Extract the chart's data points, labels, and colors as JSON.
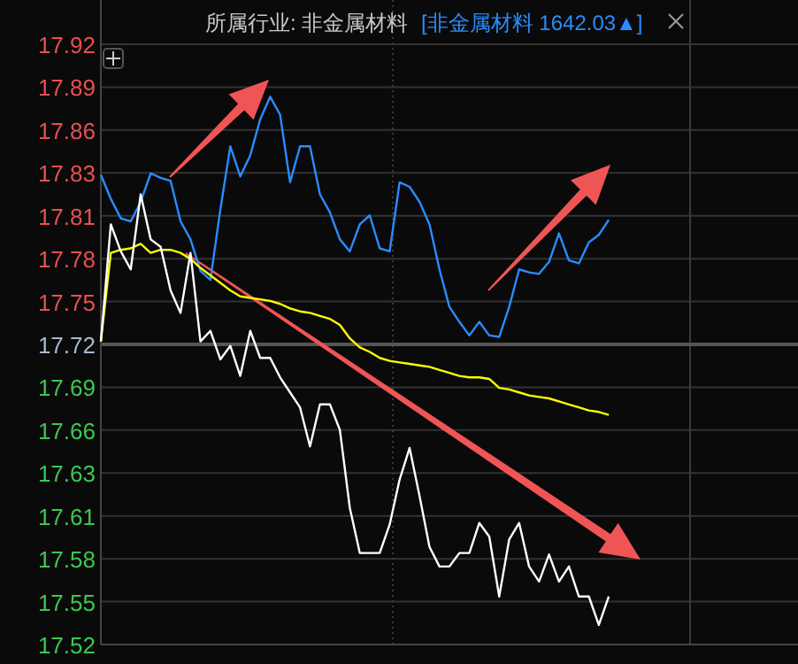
{
  "chart_data": {
    "type": "line",
    "title": "所属行业: 非金属材料",
    "subtitle": "[非金属材料 1642.03▲]",
    "categories": [
      null,
      null,
      null,
      null,
      null,
      null,
      null,
      null,
      null,
      null,
      null,
      null,
      null,
      null,
      null,
      null,
      null,
      null,
      null,
      null,
      null,
      null,
      null,
      null,
      null,
      null,
      null,
      null,
      null,
      null,
      null,
      null,
      null,
      null,
      null,
      null,
      null,
      null,
      null,
      null,
      null,
      null,
      null,
      null,
      null,
      null,
      null,
      null,
      null,
      null,
      null,
      null,
      null,
      null,
      null,
      null,
      null,
      null,
      null,
      null,
      null,
      null,
      null,
      null,
      null,
      null,
      null,
      null,
      null,
      null,
      null
    ],
    "ylim": [
      17.52,
      17.92
    ],
    "yticks": [
      {
        "value": 17.52,
        "label": "17.52"
      },
      {
        "value": 17.5486,
        "label": "17.55"
      },
      {
        "value": 17.5771,
        "label": "17.58"
      },
      {
        "value": 17.6057,
        "label": "17.61"
      },
      {
        "value": 17.6343,
        "label": "17.63"
      },
      {
        "value": 17.6629,
        "label": "17.66"
      },
      {
        "value": 17.6914,
        "label": "17.69"
      },
      {
        "value": 17.72,
        "label": "17.72"
      },
      {
        "value": 17.7486,
        "label": "17.75"
      },
      {
        "value": 17.7771,
        "label": "17.78"
      },
      {
        "value": 17.8057,
        "label": "17.81"
      },
      {
        "value": 17.8343,
        "label": "17.83"
      },
      {
        "value": 17.8629,
        "label": "17.86"
      },
      {
        "value": 17.8914,
        "label": "17.89"
      },
      {
        "value": 17.92,
        "label": "17.92"
      }
    ],
    "tick_labels": "y",
    "grid": true,
    "ref_lines": [
      {
        "axis": "y",
        "value": 17.72,
        "color": "#555555"
      }
    ],
    "series": [
      {
        "color": "#2a8cff",
        "values": [
          17.833,
          17.817,
          17.804,
          17.802,
          17.815,
          17.834,
          17.831,
          17.829,
          17.802,
          17.79,
          17.769,
          17.763,
          17.81,
          17.852,
          17.832,
          17.846,
          17.87,
          17.885,
          17.873,
          17.828,
          17.852,
          17.852,
          17.82,
          17.808,
          17.79,
          17.782,
          17.8,
          17.806,
          17.784,
          17.782,
          17.828,
          17.825,
          17.815,
          17.8,
          17.77,
          17.745,
          17.735,
          17.726,
          17.735,
          17.726,
          17.725,
          17.745,
          17.77,
          17.768,
          17.767,
          17.775,
          17.794,
          17.776,
          17.774,
          17.788,
          17.793,
          17.803,
          null,
          null,
          null,
          null,
          null,
          null,
          null,
          null,
          null,
          null,
          null,
          null,
          null,
          null,
          null,
          null,
          null,
          null,
          null
        ]
      },
      {
        "color": "#ffff00",
        "values": [
          17.722,
          17.781,
          17.783,
          17.784,
          17.787,
          17.781,
          17.783,
          17.783,
          17.781,
          17.777,
          17.771,
          17.766,
          17.761,
          17.756,
          17.752,
          17.751,
          17.75,
          17.749,
          17.747,
          17.744,
          17.742,
          17.741,
          17.739,
          17.737,
          17.733,
          17.724,
          17.718,
          17.715,
          17.711,
          17.709,
          17.708,
          17.707,
          17.706,
          17.705,
          17.703,
          17.701,
          17.699,
          17.698,
          17.698,
          17.697,
          17.691,
          17.69,
          17.688,
          17.686,
          17.685,
          17.684,
          17.682,
          17.68,
          17.678,
          17.676,
          17.675,
          17.673,
          null,
          null,
          null,
          null,
          null,
          null,
          null,
          null,
          null,
          null,
          null,
          null,
          null,
          null,
          null,
          null,
          null,
          null,
          null
        ]
      },
      {
        "color": "#ffffff",
        "values": [
          17.722,
          17.8,
          17.782,
          17.77,
          17.82,
          17.79,
          17.785,
          17.756,
          17.741,
          17.781,
          17.722,
          17.729,
          17.71,
          17.719,
          17.699,
          17.729,
          17.711,
          17.711,
          17.698,
          17.688,
          17.678,
          17.652,
          17.68,
          17.68,
          17.663,
          17.611,
          17.581,
          17.581,
          17.581,
          17.6,
          17.63,
          17.651,
          17.619,
          17.585,
          17.572,
          17.572,
          17.581,
          17.581,
          17.601,
          17.592,
          17.552,
          17.59,
          17.601,
          17.572,
          17.562,
          17.58,
          17.562,
          17.572,
          17.552,
          17.552,
          17.533,
          17.552,
          null,
          null,
          null,
          null,
          null,
          null,
          null,
          null,
          null,
          null,
          null,
          null,
          null,
          null,
          null,
          null,
          null,
          null,
          null
        ]
      }
    ]
  }
}
